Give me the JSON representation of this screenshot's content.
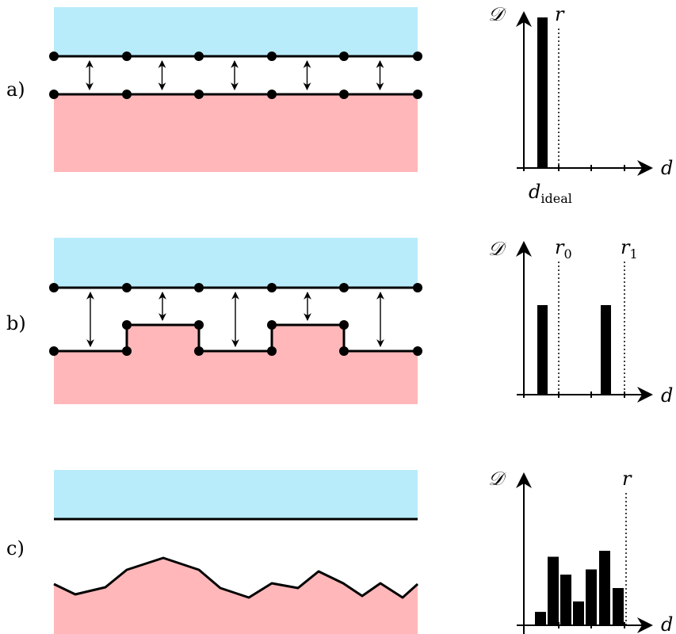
{
  "colors": {
    "upper_region": "#b9ecfb",
    "lower_region": "#ffb7b9",
    "line": "#000000"
  },
  "panels": [
    {
      "label": "a)",
      "histogram": {
        "y_label": "𝒟",
        "x_label": "d",
        "markers": [
          {
            "label": "r",
            "subscript": ""
          }
        ],
        "x_annotation": {
          "base": "d",
          "subscript": "ideal"
        },
        "bars": [
          1.0
        ]
      }
    },
    {
      "label": "b)",
      "histogram": {
        "y_label": "𝒟",
        "x_label": "d",
        "markers": [
          {
            "label": "r",
            "subscript": "0"
          },
          {
            "label": "r",
            "subscript": "1"
          }
        ],
        "bars": [
          1.0,
          1.0
        ]
      }
    },
    {
      "label": "c)",
      "histogram": {
        "y_label": "𝒟",
        "x_label": "d",
        "markers": [
          {
            "label": "r",
            "subscript": ""
          }
        ],
        "bars": [
          0.18,
          0.92,
          0.68,
          0.32,
          0.75,
          1.0,
          0.5
        ]
      }
    }
  ]
}
